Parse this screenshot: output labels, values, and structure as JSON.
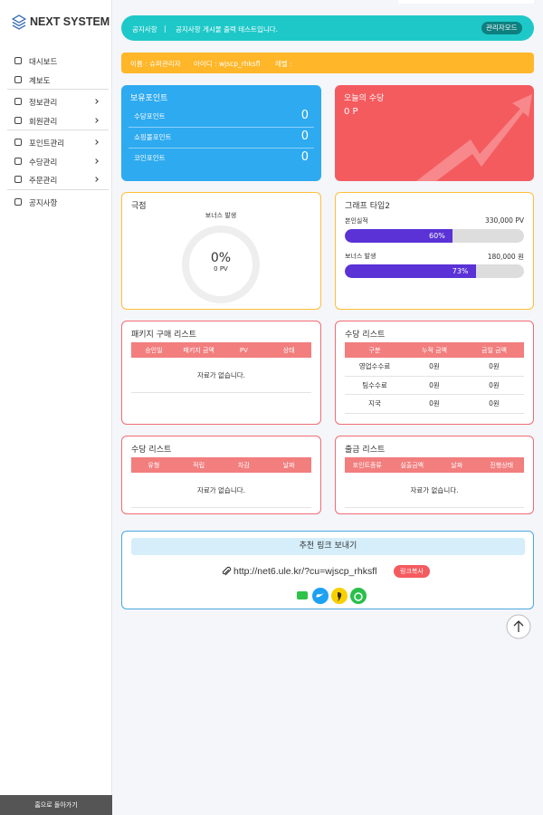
{
  "sidebar": {
    "logo": "NEXT SYSTEM",
    "menu": [
      [
        "대시보드",
        "계보도"
      ],
      [
        "정보관리",
        "회원관리"
      ],
      [
        "포인트관리",
        "수당관리",
        "주문관리"
      ],
      [
        "공지사항"
      ]
    ],
    "home": "홈으로 돌아가기"
  },
  "notice": {
    "label": "공지사항",
    "separator": "|",
    "text": "공지사항 게시물 출력 테스트입니다.",
    "button": "관리자모드"
  },
  "user_info": [
    "이름 : 슈퍼관리자",
    "아이디 : wjscp_rhksfl",
    "레벨 :"
  ],
  "points": {
    "title": "보유포인트",
    "rows": [
      {
        "label": "수당포인트",
        "value": 0
      },
      {
        "label": "쇼핑몰포인트",
        "value": 0
      },
      {
        "label": "코인포인트",
        "value": 0
      }
    ]
  },
  "today": {
    "title": "오늘의 수당",
    "amount": "0 P"
  },
  "pole": {
    "title": "극점",
    "subtitle": "보너스 발생",
    "percent": 0,
    "percent_label": "0%",
    "pv": "0 PV"
  },
  "graph": {
    "title": "그래프 타입2",
    "bars": [
      {
        "label": "본인실적",
        "amount": "330,000 PV",
        "percent": 60,
        "percent_label": "60%"
      },
      {
        "label": "보너스 발생",
        "amount": "180,000 원",
        "percent": 73,
        "percent_label": "73%"
      }
    ]
  },
  "tables": [
    {
      "title": "패키지 구매 리스트",
      "columns": [
        "승인일",
        "패키지 금액",
        "PV",
        "상태"
      ],
      "rows": [],
      "empty": "자료가 없습니다."
    },
    {
      "title": "수당 리스트",
      "columns": [
        "구분",
        "누적 금액",
        "금일 금액"
      ],
      "rows": [
        [
          "영업수수료",
          "0원",
          "0원"
        ],
        [
          "팀수수료",
          "0원",
          "0원"
        ],
        [
          "지국",
          "0원",
          "0원"
        ]
      ]
    },
    {
      "title": "수당 리스트",
      "columns": [
        "유형",
        "적립",
        "차감",
        "날짜"
      ],
      "rows": [],
      "empty": "자료가 없습니다."
    },
    {
      "title": "출금 리스트",
      "columns": [
        "포인트종류",
        "실출금액",
        "날짜",
        "진행상태"
      ],
      "rows": [],
      "empty": "자료가 없습니다."
    }
  ],
  "referral": {
    "title": "추천 링크 보내기",
    "url": "http://net6.ule.kr/?cu=wjscp_rhksfl",
    "button": "링크복사"
  }
}
